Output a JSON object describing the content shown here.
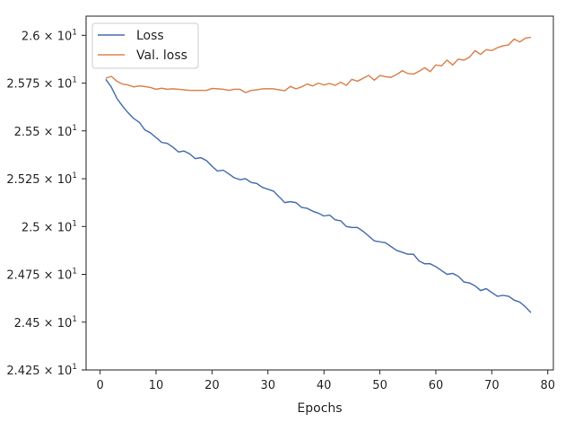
{
  "chart_data": {
    "type": "line",
    "title": "",
    "xlabel": "Epochs",
    "ylabel": "",
    "xlim": [
      -2.5,
      81
    ],
    "ylim": [
      24.25,
      26.1
    ],
    "grid": false,
    "legend_placement": "top-left",
    "x_ticks": [
      0,
      10,
      20,
      30,
      40,
      50,
      60,
      70,
      80
    ],
    "y_ticks": [
      {
        "value": 24.25,
        "mantissa": "2.425",
        "base": "10",
        "exp": "1"
      },
      {
        "value": 24.5,
        "mantissa": "2.45",
        "base": "10",
        "exp": "1"
      },
      {
        "value": 24.75,
        "mantissa": "2.475",
        "base": "10",
        "exp": "1"
      },
      {
        "value": 25.0,
        "mantissa": "2.5",
        "base": "10",
        "exp": "1"
      },
      {
        "value": 25.25,
        "mantissa": "2.525",
        "base": "10",
        "exp": "1"
      },
      {
        "value": 25.5,
        "mantissa": "2.55",
        "base": "10",
        "exp": "1"
      },
      {
        "value": 25.75,
        "mantissa": "2.575",
        "base": "10",
        "exp": "1"
      },
      {
        "value": 26.0,
        "mantissa": "2.6",
        "base": "10",
        "exp": "1"
      }
    ],
    "x": [
      1,
      2,
      3,
      4,
      5,
      6,
      7,
      8,
      9,
      10,
      11,
      12,
      13,
      14,
      15,
      16,
      17,
      18,
      19,
      20,
      21,
      22,
      23,
      24,
      25,
      26,
      27,
      28,
      29,
      30,
      31,
      32,
      33,
      34,
      35,
      36,
      37,
      38,
      39,
      40,
      41,
      42,
      43,
      44,
      45,
      46,
      47,
      48,
      49,
      50,
      51,
      52,
      53,
      54,
      55,
      56,
      57,
      58,
      59,
      60,
      61,
      62,
      63,
      64,
      65,
      66,
      67,
      68,
      69,
      70,
      71,
      72,
      73,
      74,
      75,
      76,
      77
    ],
    "series": [
      {
        "name": "Loss",
        "color": "#4c72b0",
        "values": [
          25.77,
          25.73,
          25.67,
          25.63,
          25.595,
          25.565,
          25.545,
          25.505,
          25.49,
          25.465,
          25.44,
          25.435,
          25.415,
          25.39,
          25.395,
          25.38,
          25.355,
          25.36,
          25.345,
          25.315,
          25.29,
          25.295,
          25.275,
          25.255,
          25.245,
          25.25,
          25.23,
          25.225,
          25.205,
          25.195,
          25.185,
          25.155,
          25.125,
          25.13,
          25.125,
          25.1,
          25.095,
          25.08,
          25.07,
          25.055,
          25.06,
          25.035,
          25.03,
          25.0,
          24.995,
          24.995,
          24.975,
          24.95,
          24.925,
          24.92,
          24.915,
          24.895,
          24.875,
          24.865,
          24.855,
          24.855,
          24.82,
          24.805,
          24.805,
          24.79,
          24.77,
          24.75,
          24.755,
          24.74,
          24.71,
          24.705,
          24.69,
          24.665,
          24.675,
          24.655,
          24.635,
          24.64,
          24.635,
          24.615,
          24.605,
          24.58,
          24.55
        ]
      },
      {
        "name": "Val. loss",
        "color": "#dd8452",
        "values": [
          25.775,
          25.785,
          25.76,
          25.745,
          25.74,
          25.73,
          25.735,
          25.732,
          25.727,
          25.718,
          25.723,
          25.718,
          25.72,
          25.718,
          25.715,
          25.712,
          25.712,
          25.712,
          25.712,
          25.722,
          25.72,
          25.718,
          25.712,
          25.718,
          25.718,
          25.7,
          25.712,
          25.715,
          25.72,
          25.72,
          25.72,
          25.715,
          25.71,
          25.733,
          25.72,
          25.73,
          25.745,
          25.735,
          25.75,
          25.74,
          25.748,
          25.738,
          25.755,
          25.738,
          25.77,
          25.76,
          25.775,
          25.79,
          25.765,
          25.79,
          25.783,
          25.78,
          25.795,
          25.815,
          25.8,
          25.797,
          25.812,
          25.83,
          25.81,
          25.845,
          25.84,
          25.87,
          25.845,
          25.875,
          25.87,
          25.885,
          25.92,
          25.9,
          25.925,
          25.92,
          25.935,
          25.945,
          25.95,
          25.98,
          25.965,
          25.985,
          25.99
        ]
      }
    ]
  }
}
